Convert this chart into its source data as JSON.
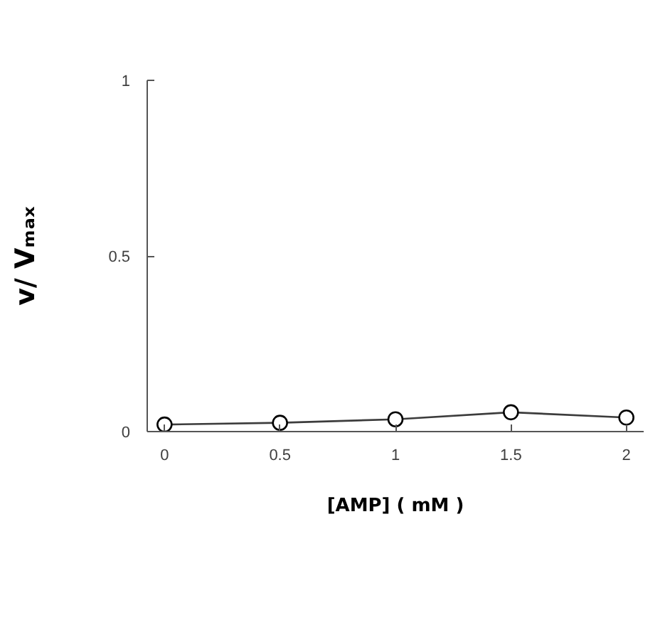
{
  "chart_data": {
    "type": "line",
    "xlabel": "[AMP] ( mM )",
    "ylabel": "v/ Vₘₐₓ",
    "x": [
      0,
      0.5,
      1,
      1.5,
      2
    ],
    "series": [
      {
        "color": "#3c3c3c",
        "values": [
          0.02,
          0.025,
          0.035,
          0.055,
          0.04
        ]
      }
    ],
    "xlim": [
      -0.075,
      2.075
    ],
    "ylim": [
      0,
      1
    ],
    "xticks": [
      0,
      0.5,
      1,
      1.5,
      2
    ],
    "yticks": [
      0,
      0.5,
      1
    ],
    "grid": false,
    "marker": "circle",
    "line_style": "solid"
  }
}
